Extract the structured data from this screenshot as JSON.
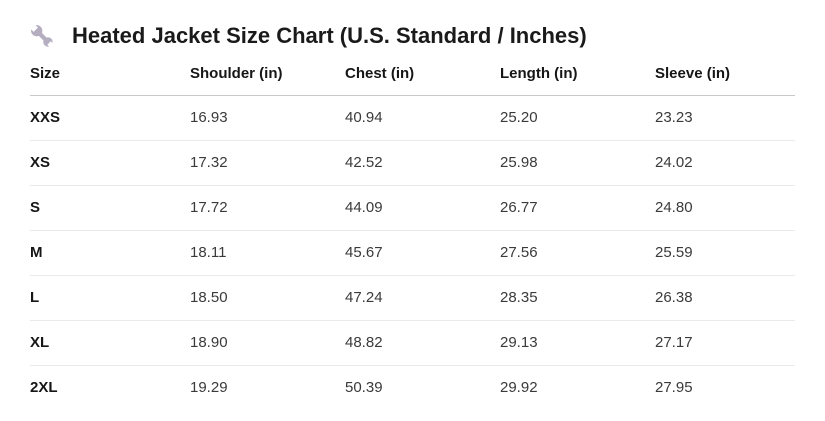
{
  "header": {
    "title": "Heated Jacket Size Chart (U.S. Standard / Inches)"
  },
  "colors": {
    "title_text": "#1a1a1a",
    "body_text": "#3a3a3a",
    "header_divider": "#c7c8c9",
    "row_divider": "#e9ebeb",
    "wrench_icon": "#b5aec0"
  },
  "icons": [
    {
      "name": "wrench-icon",
      "meaning": "tools / size chart"
    }
  ],
  "chart_data": {
    "type": "table",
    "title": "Heated Jacket Size Chart (U.S. Standard / Inches)",
    "columns": [
      "Size",
      "Shoulder (in)",
      "Chest (in)",
      "Length (in)",
      "Sleeve (in)"
    ],
    "rows": [
      [
        "XXS",
        16.93,
        40.94,
        25.2,
        23.23
      ],
      [
        "XS",
        17.32,
        42.52,
        25.98,
        24.02
      ],
      [
        "S",
        17.72,
        44.09,
        26.77,
        24.8
      ],
      [
        "M",
        18.11,
        45.67,
        27.56,
        25.59
      ],
      [
        "L",
        18.5,
        47.24,
        28.35,
        26.38
      ],
      [
        "XL",
        18.9,
        48.82,
        29.13,
        27.17
      ],
      [
        "2XL",
        19.29,
        50.39,
        29.92,
        27.95
      ]
    ],
    "value_decimals": 2,
    "layout": {
      "grid": "horizontal-row-dividers",
      "header_align": "left",
      "values_align": "left"
    }
  }
}
